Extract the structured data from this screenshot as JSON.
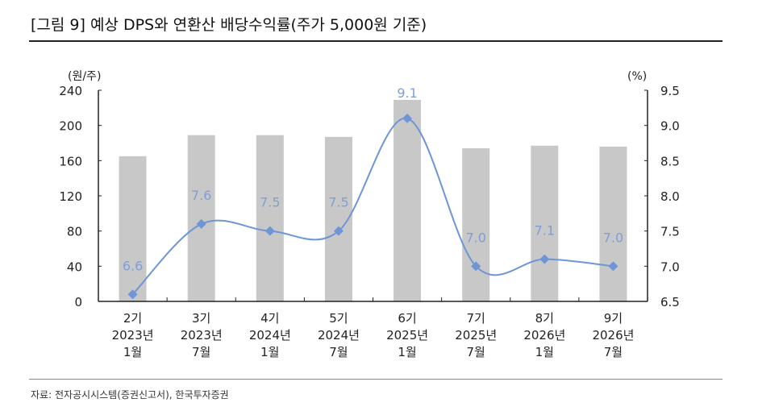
{
  "title": "[그림 9] 예상 DPS와 연환산 배당수익률(주가 5,000원 기준)",
  "source": "자료: 전자공시시스템(증권신고서), 한국투자증권",
  "chart_data": {
    "type": "bar+line",
    "categories": [
      [
        "2기",
        "2023년",
        "1월"
      ],
      [
        "3기",
        "2023년",
        "7월"
      ],
      [
        "4기",
        "2024년",
        "1월"
      ],
      [
        "5기",
        "2024년",
        "7월"
      ],
      [
        "6기",
        "2025년",
        "1월"
      ],
      [
        "7기",
        "2025년",
        "7월"
      ],
      [
        "8기",
        "2026년",
        "1월"
      ],
      [
        "9기",
        "2026년",
        "7월"
      ]
    ],
    "series": [
      {
        "type": "bar",
        "axis": "left",
        "color": "#c8c8c8",
        "values": [
          165,
          189,
          189,
          187,
          229,
          174,
          177,
          176
        ]
      },
      {
        "type": "line",
        "axis": "right",
        "color": "#6d96d6",
        "smooth": true,
        "marker": "diamond",
        "values": [
          6.6,
          7.6,
          7.5,
          7.5,
          9.1,
          7.0,
          7.1,
          7.0
        ],
        "labels": [
          "6.6",
          "7.6",
          "7.5",
          "7.5",
          "9.1",
          "7.0",
          "7.1",
          "7.0"
        ]
      }
    ],
    "left_axis": {
      "unit": "(원/주)",
      "ylim": [
        0,
        240
      ],
      "ticks": [
        0,
        40,
        80,
        120,
        160,
        200,
        240
      ]
    },
    "right_axis": {
      "unit": "(%)",
      "ylim": [
        6.5,
        9.5
      ],
      "ticks": [
        "6.5",
        "7.0",
        "7.5",
        "8.0",
        "8.5",
        "9.0",
        "9.5"
      ]
    },
    "grid": false
  }
}
